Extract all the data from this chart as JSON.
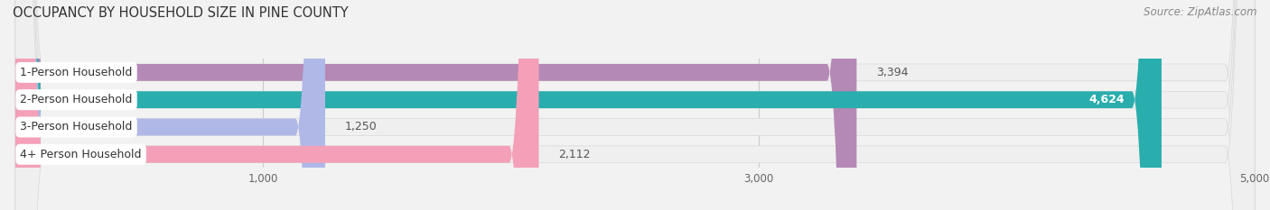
{
  "title": "OCCUPANCY BY HOUSEHOLD SIZE IN PINE COUNTY",
  "source": "Source: ZipAtlas.com",
  "categories": [
    "1-Person Household",
    "2-Person Household",
    "3-Person Household",
    "4+ Person Household"
  ],
  "values": [
    3394,
    4624,
    1250,
    2112
  ],
  "bar_colors": [
    "#b589b5",
    "#2aadad",
    "#b0b8e8",
    "#f4a0b8"
  ],
  "background_color": "#f2f2f2",
  "bar_bg_color": "#e4e4e4",
  "row_bg_color": "#ffffff",
  "xlim": [
    0,
    5000
  ],
  "xticks": [
    1000,
    3000,
    5000
  ],
  "title_fontsize": 10.5,
  "source_fontsize": 8.5,
  "category_fontsize": 9,
  "value_label_fontsize": 9
}
